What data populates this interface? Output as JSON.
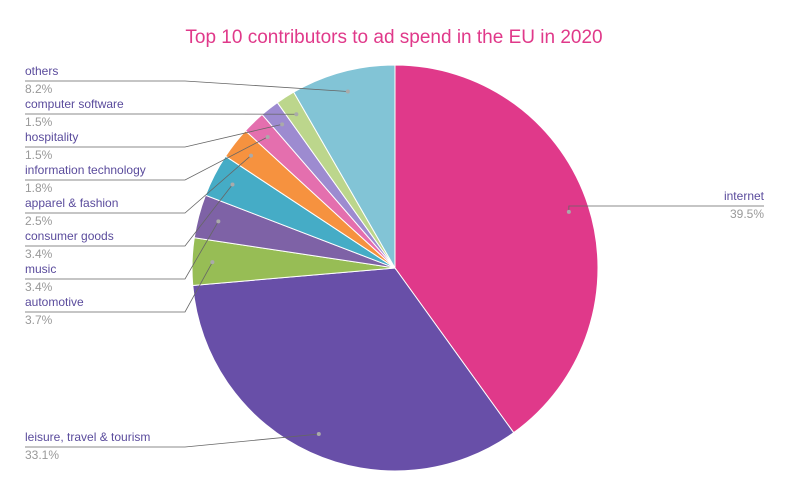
{
  "chart_data": {
    "type": "pie",
    "title": "Top 10 contributors to ad spend in the EU in 2020",
    "categories": [
      "internet",
      "leisure, travel & tourism",
      "automotive",
      "music",
      "consumer goods",
      "apparel & fashion",
      "information technology",
      "hospitality",
      "computer software",
      "others"
    ],
    "values": [
      39.5,
      33.1,
      3.7,
      3.4,
      3.4,
      2.5,
      1.8,
      1.5,
      1.5,
      8.2
    ],
    "value_labels": [
      "39.5%",
      "33.1%",
      "3.7%",
      "3.4%",
      "3.4%",
      "2.5%",
      "1.8%",
      "1.5%",
      "1.5%",
      "8.2%"
    ],
    "colors": [
      "#e0398a",
      "#684fa8",
      "#97bd55",
      "#7e62a6",
      "#45acc6",
      "#f6923f",
      "#e46fae",
      "#9d8bd0",
      "#bcd68c",
      "#82c4d6"
    ]
  }
}
